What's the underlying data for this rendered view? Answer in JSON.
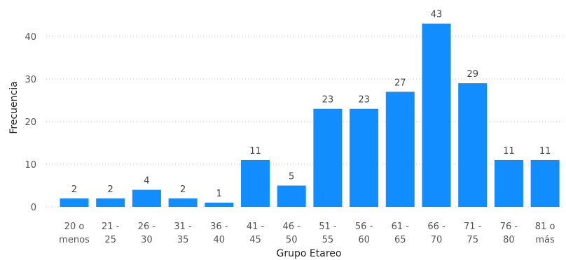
{
  "chart_data": {
    "type": "bar",
    "categories": [
      "20 o menos",
      "21 - 25",
      "26 - 30",
      "31 - 35",
      "36 - 40",
      "41 - 45",
      "46 - 50",
      "51 - 55",
      "56 - 60",
      "61 - 65",
      "66 - 70",
      "71 - 75",
      "76 - 80",
      "81 o más"
    ],
    "category_lines": [
      [
        "20 o",
        "menos"
      ],
      [
        "21 -",
        "25"
      ],
      [
        "26 -",
        "30"
      ],
      [
        "31 -",
        "35"
      ],
      [
        "36 -",
        "40"
      ],
      [
        "41 -",
        "45"
      ],
      [
        "46 -",
        "50"
      ],
      [
        "51 -",
        "55"
      ],
      [
        "56 -",
        "60"
      ],
      [
        "61 -",
        "65"
      ],
      [
        "66 -",
        "70"
      ],
      [
        "71 -",
        "75"
      ],
      [
        "76 -",
        "80"
      ],
      [
        "81 o",
        "más"
      ]
    ],
    "values": [
      2,
      2,
      4,
      2,
      1,
      11,
      5,
      23,
      23,
      27,
      43,
      29,
      11,
      11
    ],
    "xlabel": "Grupo Etareo",
    "ylabel": "Frecuencia",
    "ylim": [
      0,
      45
    ],
    "yticks": [
      0,
      10,
      20,
      30,
      40
    ],
    "grid": true,
    "data_labels": true,
    "bar_color": "#118DFF"
  }
}
